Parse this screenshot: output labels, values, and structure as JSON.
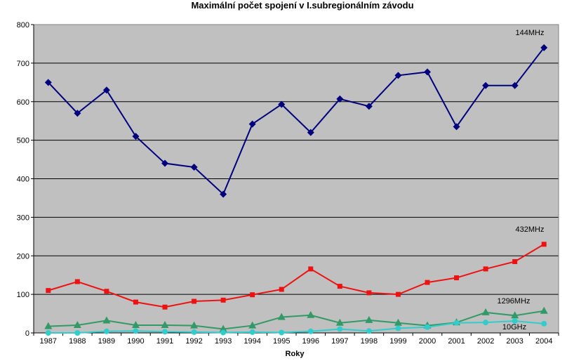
{
  "chart_data": {
    "type": "line",
    "title": "Maximální počet spojení v I.subregionálním závodu",
    "xlabel": "Roky",
    "ylabel": "",
    "ylim": [
      0,
      800
    ],
    "yticks": [
      0,
      100,
      200,
      300,
      400,
      500,
      600,
      700,
      800
    ],
    "grid": true,
    "legend": "none",
    "categories": [
      "1987",
      "1988",
      "1989",
      "1990",
      "1991",
      "1992",
      "1993",
      "1994",
      "1995",
      "1996",
      "1997",
      "1998",
      "1999",
      "2000",
      "2001",
      "2002",
      "2003",
      "2004"
    ],
    "series": [
      {
        "name": "144MHz",
        "color": "#00007f",
        "marker": "diamond",
        "values": [
          650,
          570,
          630,
          510,
          440,
          430,
          360,
          542,
          593,
          520,
          607,
          588,
          668,
          677,
          535,
          642,
          642,
          740
        ]
      },
      {
        "name": "432MHz",
        "color": "#ee1111",
        "marker": "square",
        "values": [
          110,
          133,
          108,
          80,
          67,
          82,
          85,
          99,
          113,
          166,
          121,
          104,
          100,
          131,
          143,
          166,
          185,
          230
        ]
      },
      {
        "name": "1296MHz",
        "color": "#339966",
        "marker": "triangle",
        "values": [
          17,
          20,
          32,
          20,
          20,
          19,
          10,
          19,
          41,
          46,
          26,
          33,
          26,
          19,
          27,
          53,
          45,
          57
        ]
      },
      {
        "name": "10GHz",
        "color": "#33cccc",
        "marker": "circle",
        "values": [
          0,
          0,
          4,
          5,
          3,
          2,
          1,
          2,
          1,
          4,
          10,
          5,
          12,
          15,
          26,
          27,
          31,
          24
        ]
      }
    ]
  }
}
